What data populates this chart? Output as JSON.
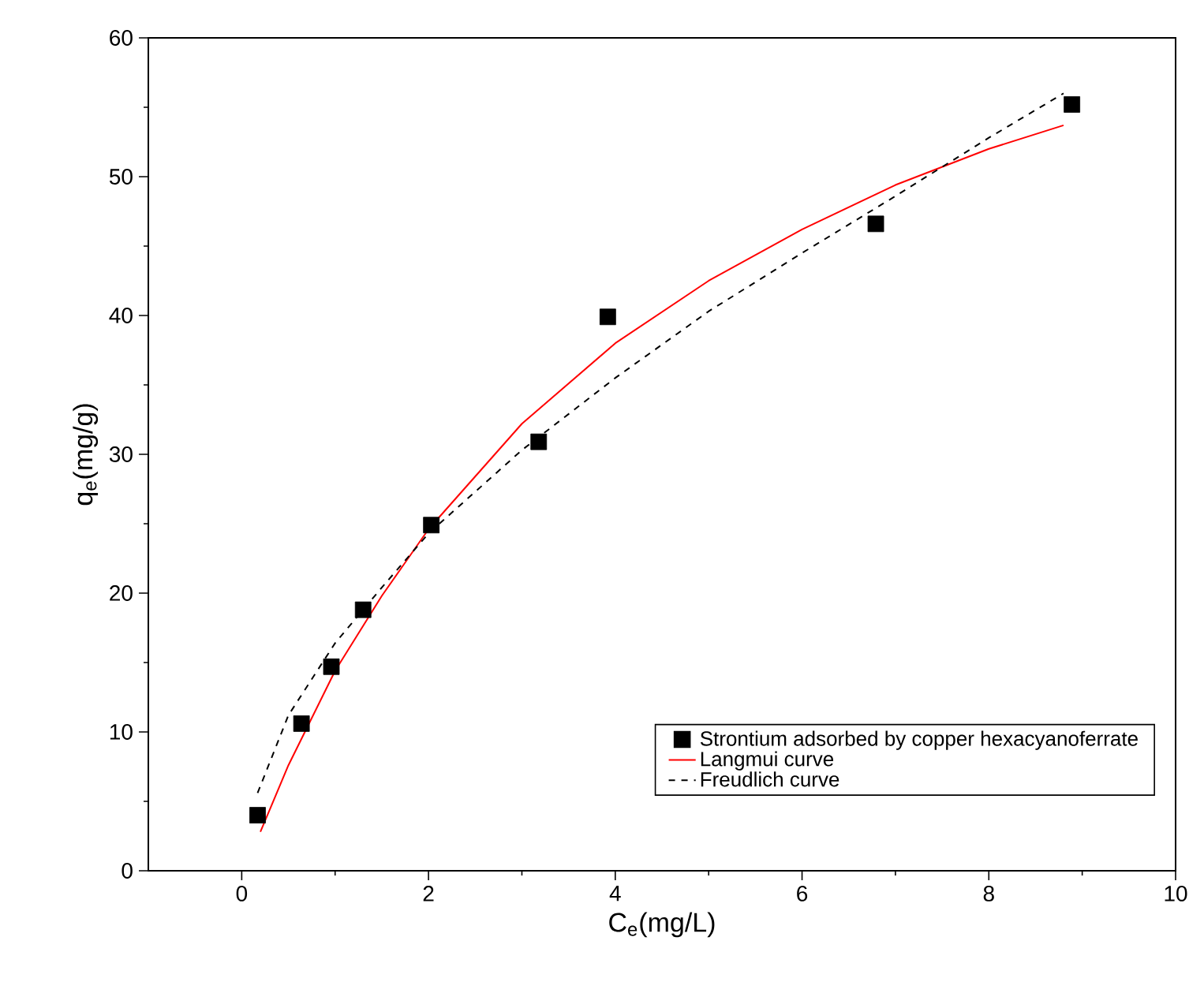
{
  "chart_data": {
    "type": "scatter",
    "xlabel": "C$_{e}$(mg/L)",
    "ylabel": "q$_{e}$(mg/g)",
    "xlim": [
      -1,
      10
    ],
    "ylim": [
      0,
      60
    ],
    "xticks": [
      0,
      2,
      4,
      6,
      8,
      10
    ],
    "yticks": [
      0,
      10,
      20,
      30,
      40,
      50,
      60
    ],
    "legend": "bottom right",
    "marker": "square",
    "series": [
      {
        "name": "Strontium adsorbed by copper hexacyanoferrate",
        "color": "#000000",
        "x": [
          0.17,
          0.64,
          0.96,
          1.3,
          2.03,
          3.18,
          3.92,
          6.79,
          8.89
        ],
        "values": [
          4.0,
          10.6,
          14.7,
          18.8,
          24.9,
          30.9,
          39.9,
          46.6,
          55.2
        ]
      },
      {
        "name": "Langmui curve",
        "type": "line",
        "color": "#ff0000",
        "line_style": "solid",
        "marker": "none",
        "x": [
          0.2,
          0.5,
          1,
          1.5,
          2,
          3,
          4,
          5,
          6,
          7,
          8,
          8.8
        ],
        "values": [
          2.8,
          7.6,
          14.4,
          19.8,
          24.6,
          32.2,
          38,
          42.5,
          46.2,
          49.4,
          52,
          53.7
        ]
      },
      {
        "name": "Freudlich curve",
        "type": "line",
        "color": "#000000",
        "line_style": "dashed",
        "marker": "none",
        "x": [
          0.17,
          0.5,
          1,
          1.5,
          2,
          3,
          4,
          5,
          6,
          7,
          8,
          8.8
        ],
        "values": [
          5.6,
          11.2,
          16.4,
          20.4,
          24.3,
          30.3,
          35.5,
          40.3,
          44.5,
          48.6,
          52.8,
          56
        ]
      }
    ]
  }
}
